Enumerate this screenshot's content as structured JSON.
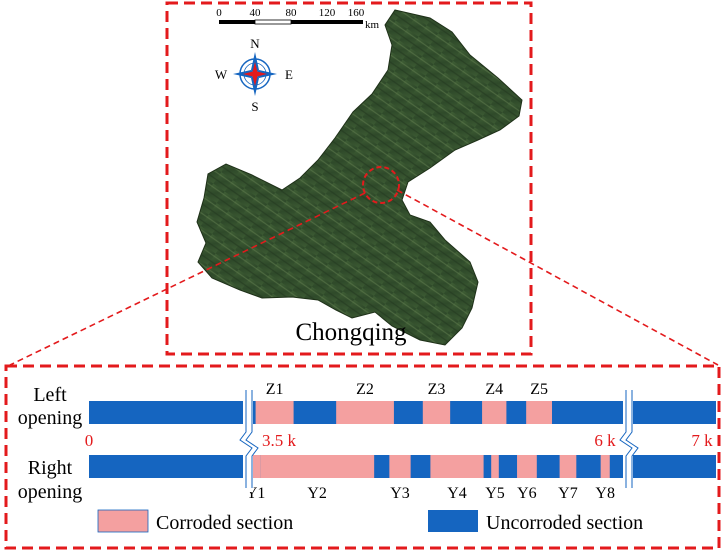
{
  "map": {
    "title": "Chongqing",
    "scale_bar": {
      "ticks": [
        "0",
        "40",
        "80",
        "120",
        "160"
      ],
      "unit": "km"
    },
    "compass": {
      "n": "N",
      "s": "S",
      "e": "E",
      "w": "W"
    }
  },
  "tunnel": {
    "left_label_1": "Left",
    "left_label_2": "opening",
    "right_label_1": "Right",
    "right_label_2": "opening",
    "markers": {
      "start": "0",
      "m35": "3.5 k",
      "m6": "6 k",
      "end": "7 k"
    },
    "left_zones": [
      {
        "label": "Z1",
        "from": 3.55,
        "to": 3.8
      },
      {
        "label": "Z2",
        "from": 4.08,
        "to": 4.46
      },
      {
        "label": "Z3",
        "from": 4.65,
        "to": 4.83
      },
      {
        "label": "Z4",
        "from": 5.04,
        "to": 5.2
      },
      {
        "label": "Z5",
        "from": 5.33,
        "to": 5.5
      }
    ],
    "right_zones": [
      {
        "label": "Y1",
        "from": 3.52,
        "to": 3.58
      },
      {
        "label": "Y2",
        "from": 3.58,
        "to": 4.33
      },
      {
        "label": "Y3",
        "from": 4.43,
        "to": 4.57
      },
      {
        "label": "Y4",
        "from": 4.7,
        "to": 5.05
      },
      {
        "label": "Y5",
        "from": 5.1,
        "to": 5.15
      },
      {
        "label": "Y6",
        "from": 5.27,
        "to": 5.4
      },
      {
        "label": "Y7",
        "from": 5.55,
        "to": 5.66
      },
      {
        "label": "Y8",
        "from": 5.82,
        "to": 5.88
      }
    ],
    "colors": {
      "corroded": "#f4a0a0",
      "uncorroded": "#1565c0",
      "frame": "#e31a1c"
    },
    "legend": {
      "corroded": "Corroded section",
      "uncorroded": "Uncorroded section"
    }
  }
}
